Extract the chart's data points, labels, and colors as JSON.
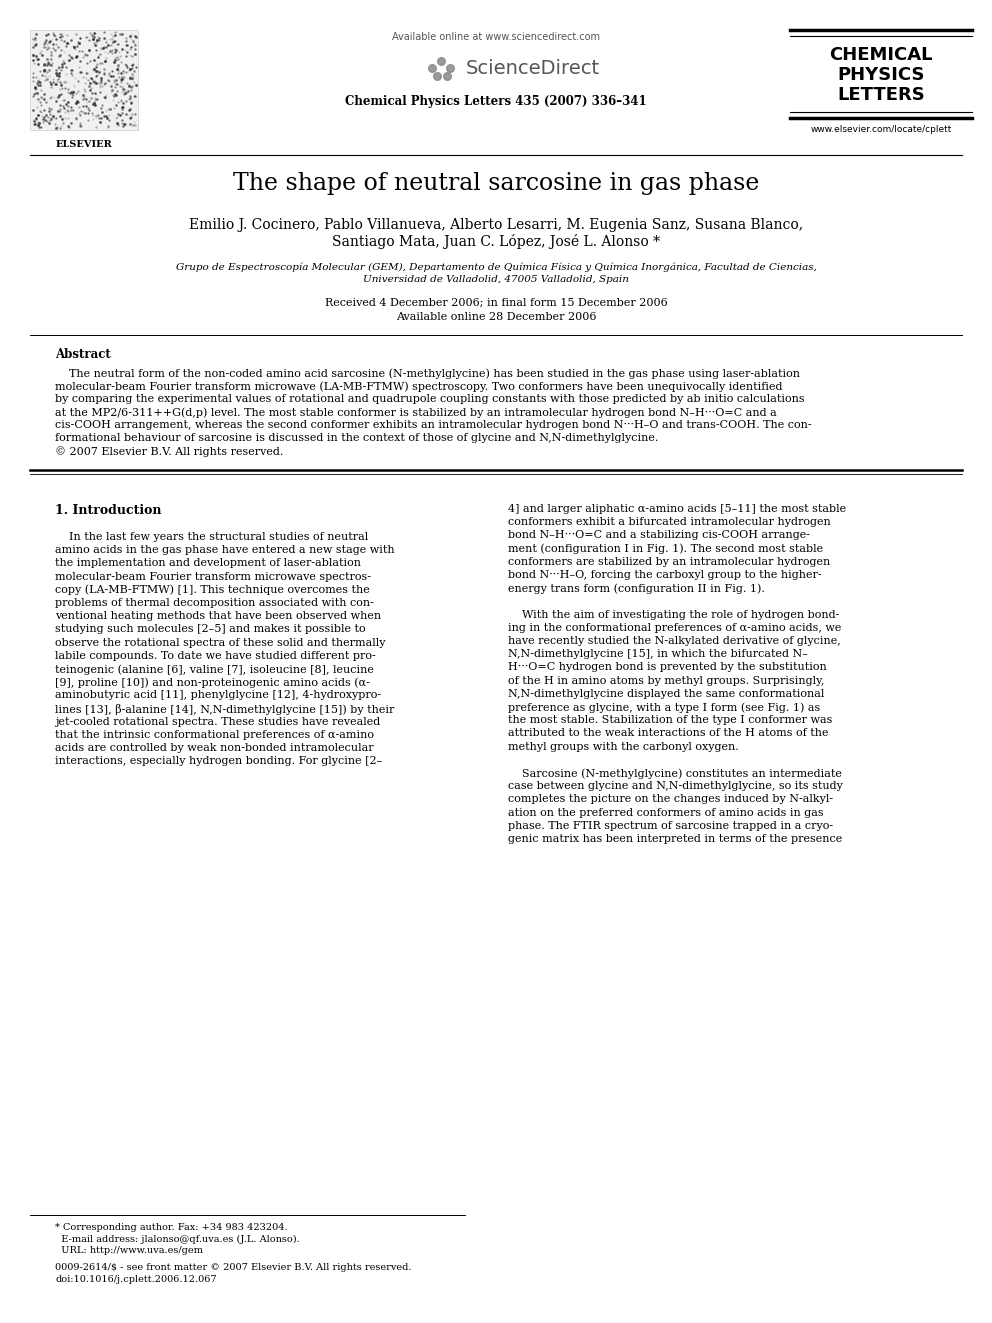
{
  "page_title": "The shape of neutral sarcosine in gas phase",
  "journal_url": "www.elsevier.com/locate/cplett",
  "available_online": "Available online at www.sciencedirect.com",
  "journal_ref": "Chemical Physics Letters 435 (2007) 336–341",
  "authors_line1": "Emilio J. Cocinero, Pablo Villanueva, Alberto Lesarri, M. Eugenia Sanz, Susana Blanco,",
  "authors_line2": "Santiago Mata, Juan C. López, José L. Alonso *",
  "affiliation_line1": "Grupo de Espectroscopía Molecular (GEM), Departamento de Química Física y Química Inorgánica, Facultad de Ciencias,",
  "affiliation_line2": "Universidad de Valladolid, 47005 Valladolid, Spain",
  "received": "Received 4 December 2006; in final form 15 December 2006",
  "available_date": "Available online 28 December 2006",
  "abstract_title": "Abstract",
  "abstract_line1": "    The neutral form of the non-coded amino acid sarcosine (N-methylglycine) has been studied in the gas phase using laser-ablation",
  "abstract_line2": "molecular-beam Fourier transform microwave (LA-MB-FTMW) spectroscopy. Two conformers have been unequivocally identified",
  "abstract_line3": "by comparing the experimental values of rotational and quadrupole coupling constants with those predicted by ab initio calculations",
  "abstract_line4": "at the MP2/6-311++G(d,p) level. The most stable conformer is stabilized by an intramolecular hydrogen bond N–H···O=C and a",
  "abstract_line5": "cis-COOH arrangement, whereas the second conformer exhibits an intramolecular hydrogen bond N···H–O and trans-COOH. The con-",
  "abstract_line6": "formational behaviour of sarcosine is discussed in the context of those of glycine and N,N-dimethylglycine.",
  "abstract_copyright": "© 2007 Elsevier B.V. All rights reserved.",
  "section1_title": "1. Introduction",
  "col1_lines": [
    "    In the last few years the structural studies of neutral",
    "amino acids in the gas phase have entered a new stage with",
    "the implementation and development of laser-ablation",
    "molecular-beam Fourier transform microwave spectros-",
    "copy (LA-MB-FTMW) [1]. This technique overcomes the",
    "problems of thermal decomposition associated with con-",
    "ventional heating methods that have been observed when",
    "studying such molecules [2–5] and makes it possible to",
    "observe the rotational spectra of these solid and thermally",
    "labile compounds. To date we have studied different pro-",
    "teinogenic (alanine [6], valine [7], isoleucine [8], leucine",
    "[9], proline [10]) and non-proteinogenic amino acids (α-",
    "aminobutyric acid [11], phenylglycine [12], 4-hydroxypro-",
    "lines [13], β-alanine [14], N,N-dimethylglycine [15]) by their",
    "jet-cooled rotational spectra. These studies have revealed",
    "that the intrinsic conformational preferences of α-amino",
    "acids are controlled by weak non-bonded intramolecular",
    "interactions, especially hydrogen bonding. For glycine [2–"
  ],
  "col2_lines": [
    "4] and larger aliphatic α-amino acids [5–11] the most stable",
    "conformers exhibit a bifurcated intramolecular hydrogen",
    "bond N–H···O=C and a stabilizing cis-COOH arrange-",
    "ment (configuration I in Fig. 1). The second most stable",
    "conformers are stabilized by an intramolecular hydrogen",
    "bond N···H–O, forcing the carboxyl group to the higher-",
    "energy trans form (configuration II in Fig. 1).",
    "",
    "    With the aim of investigating the role of hydrogen bond-",
    "ing in the conformational preferences of α-amino acids, we",
    "have recently studied the N-alkylated derivative of glycine,",
    "N,N-dimethylglycine [15], in which the bifurcated N–",
    "H···O=C hydrogen bond is prevented by the substitution",
    "of the H in amino atoms by methyl groups. Surprisingly,",
    "N,N-dimethylglycine displayed the same conformational",
    "preference as glycine, with a type I form (see Fig. 1) as",
    "the most stable. Stabilization of the type I conformer was",
    "attributed to the weak interactions of the H atoms of the",
    "methyl groups with the carbonyl oxygen.",
    "",
    "    Sarcosine (N-methylglycine) constitutes an intermediate",
    "case between glycine and N,N-dimethylglycine, so its study",
    "completes the picture on the changes induced by N-alkyl-",
    "ation on the preferred conformers of amino acids in gas",
    "phase. The FTIR spectrum of sarcosine trapped in a cryo-",
    "genic matrix has been interpreted in terms of the presence"
  ],
  "footer_star": "* Corresponding author. Fax: +34 983 423204.",
  "footer_email": "  E-mail address: jlalonso@qf.uva.es (J.L. Alonso).",
  "footer_url": "  URL: http://www.uva.es/gem",
  "footer_copy1": "0009-2614/$ - see front matter © 2007 Elsevier B.V. All rights reserved.",
  "footer_copy2": "doi:10.1016/j.cplett.2006.12.067",
  "bg_color": "#ffffff"
}
